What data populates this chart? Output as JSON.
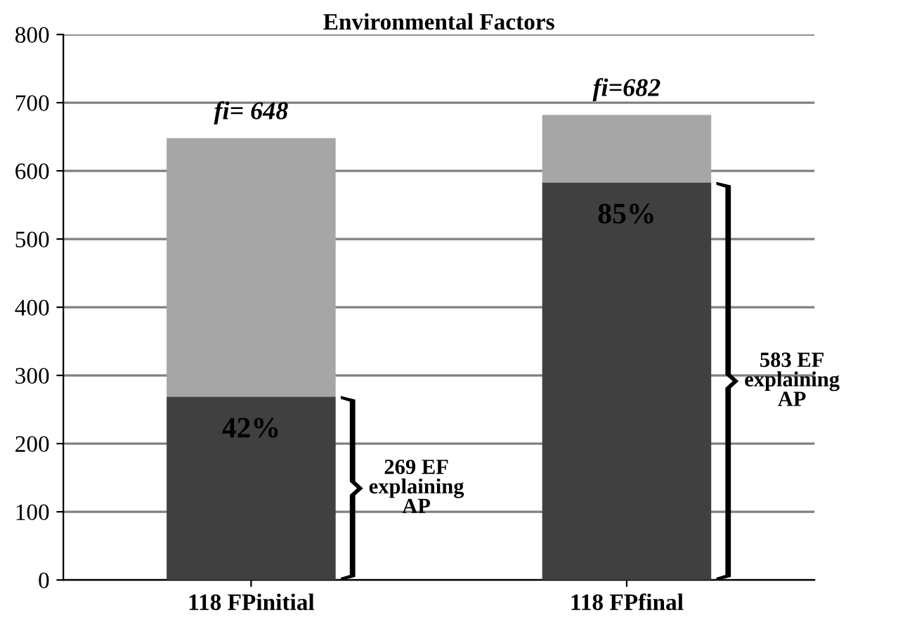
{
  "chart_data": {
    "type": "bar",
    "title": "Environmental Factors",
    "categories": [
      "118 FPinitial",
      "118 FPfinal"
    ],
    "stacked": true,
    "series": [
      {
        "color": "#404040",
        "values": [
          269,
          583
        ]
      },
      {
        "color": "#a6a6a6",
        "values": [
          379,
          99
        ]
      }
    ],
    "ylim": [
      0,
      800
    ],
    "yticks": [
      0,
      100,
      200,
      300,
      400,
      500,
      600,
      700,
      800
    ],
    "grid": "y",
    "legend": false,
    "annotations": [
      {
        "text": "fi= 648",
        "x": "118 FPinitial",
        "y": 648
      },
      {
        "text": "fi=682",
        "x": "118 FPfinal",
        "y": 682
      },
      {
        "text": "42%",
        "x": "118 FPinitial",
        "y": 269
      },
      {
        "text": "85%",
        "x": "118 FPfinal",
        "y": 583
      },
      "269 EF\nexplaining\nAP",
      "583 EF\nexplaining\nAP"
    ]
  }
}
